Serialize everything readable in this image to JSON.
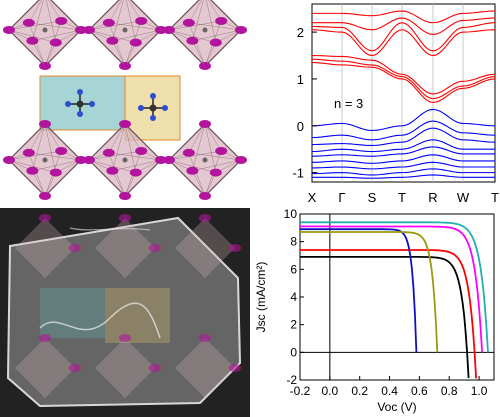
{
  "colors": {
    "octahedron": "#d9b6c0",
    "octahedron_edge": "#6a4a55",
    "iodine_atom": "#b3149e",
    "cage_teal": "#5fb3b3",
    "cage_yellow": "#e2c56a",
    "cage_edge_orange": "#e08a2a",
    "conduction_band": "#ff0000",
    "valence_band": "#0000ff",
    "photo_background": "#222222"
  },
  "band_structure": {
    "annotation": "n = 3",
    "kpoints": [
      "X",
      "Γ",
      "S",
      "T",
      "R",
      "W",
      "T"
    ],
    "y_ticks": [
      "2",
      "1",
      "0",
      "-1"
    ]
  },
  "chart_data": {
    "type": "line",
    "xlabel": "Voc (V)",
    "ylabel": "Jsc (mA/cm²)",
    "xlim": [
      -0.2,
      1.1
    ],
    "ylim": [
      -2,
      10
    ],
    "x_ticks": [
      "-0.2",
      "0.0",
      "0.2",
      "0.4",
      "0.6",
      "0.8",
      "1.0"
    ],
    "y_ticks": [
      "10",
      "8",
      "6",
      "4",
      "2",
      "0",
      "-2"
    ],
    "grid": false,
    "series": [
      {
        "color": "#000000",
        "jsc": 6.9,
        "voc": 0.92
      },
      {
        "color": "#ff0000",
        "jsc": 7.4,
        "voc": 0.97
      },
      {
        "color": "#1010c0",
        "jsc": 8.9,
        "voc": 0.58
      },
      {
        "color": "#9a9a10",
        "jsc": 8.7,
        "voc": 0.72
      },
      {
        "color": "#ff00ff",
        "jsc": 9.1,
        "voc": 1.02
      },
      {
        "color": "#20b0b0",
        "jsc": 9.4,
        "voc": 1.06
      }
    ]
  }
}
